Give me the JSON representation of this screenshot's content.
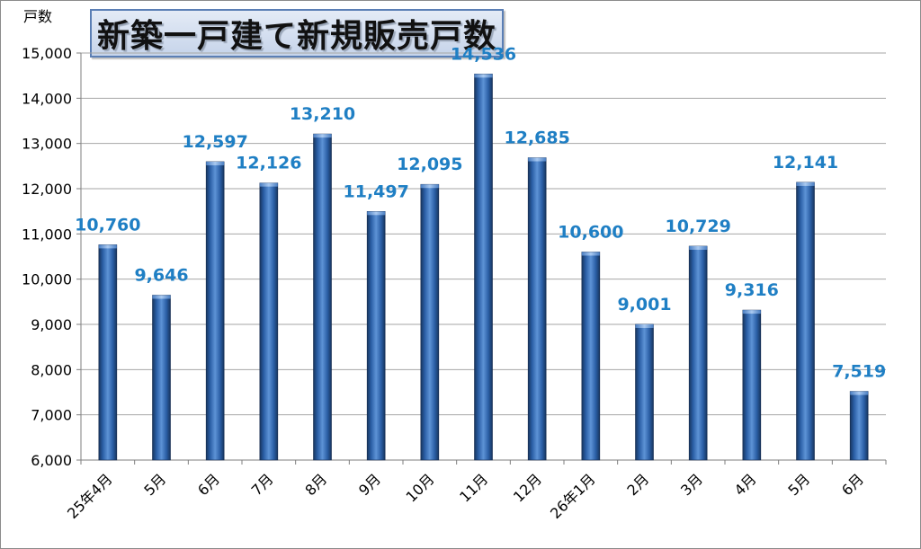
{
  "chart_data": {
    "type": "bar",
    "title": "新築一戸建て新規販売戸数",
    "ylabel": "戸数",
    "xlabel": "",
    "categories": [
      "25年4月",
      "5月",
      "6月",
      "7月",
      "8月",
      "9月",
      "10月",
      "11月",
      "12月",
      "26年1月",
      "2月",
      "3月",
      "4月",
      "5月",
      "6月"
    ],
    "values": [
      10760,
      9646,
      12597,
      12126,
      13210,
      11497,
      12095,
      14536,
      12685,
      10600,
      9001,
      10729,
      9316,
      12141,
      7519
    ],
    "value_labels": [
      "10,760",
      "9,646",
      "12,597",
      "12,126",
      "13,210",
      "11,497",
      "12,095",
      "14,536",
      "12,685",
      "10,600",
      "9,001",
      "10,729",
      "9,316",
      "12,141",
      "7,519"
    ],
    "y_ticks": [
      "6,000",
      "7,000",
      "8,000",
      "9,000",
      "10,000",
      "11,000",
      "12,000",
      "13,000",
      "14,000",
      "15,000"
    ],
    "ylim": [
      6000,
      15000
    ],
    "grid": true,
    "legend": "none",
    "colors": {
      "bar": "#2e5f9e",
      "value_label": "#1f7fc4",
      "grid": "#a6a6a6"
    }
  }
}
